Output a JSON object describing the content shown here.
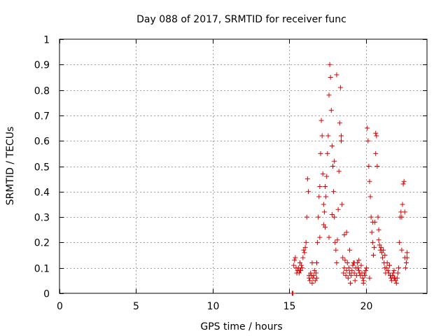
{
  "chart_data": {
    "type": "scatter",
    "title": "Day 088 of 2017, SRMTID for receiver func",
    "xlabel": "GPS time / hours",
    "ylabel": "SRMTID / TECUs",
    "xlim": [
      0,
      24
    ],
    "ylim": [
      0,
      1
    ],
    "x_ticks": [
      0,
      5,
      10,
      15,
      20
    ],
    "x_tick_labels": [
      "0",
      "5",
      "10",
      "15",
      "20"
    ],
    "y_ticks": [
      0,
      0.1,
      0.2,
      0.3,
      0.4,
      0.5,
      0.6,
      0.7,
      0.8,
      0.9,
      1
    ],
    "y_tick_labels": [
      "0",
      "0.1",
      "0.2",
      "0.3",
      "0.4",
      "0.5",
      "0.6",
      "0.7",
      "0.8",
      "0.9",
      "1"
    ],
    "grid": true,
    "marker": "plus",
    "color": "#e00000",
    "series": [
      {
        "name": "SRMTID",
        "x": [
          15.2,
          15.25,
          15.35,
          15.4,
          15.45,
          15.5,
          15.55,
          15.6,
          15.65,
          15.7,
          15.75,
          15.8,
          15.85,
          15.9,
          15.95,
          16.0,
          16.05,
          16.1,
          16.15,
          16.2,
          16.25,
          16.3,
          16.3,
          16.35,
          16.4,
          16.45,
          16.5,
          16.55,
          16.6,
          16.65,
          16.7,
          16.75,
          16.8,
          16.85,
          16.9,
          16.95,
          17.0,
          17.05,
          17.1,
          17.15,
          17.2,
          17.25,
          17.3,
          17.35,
          17.4,
          17.45,
          17.5,
          17.55,
          17.6,
          17.65,
          17.7,
          17.75,
          17.8,
          17.85,
          17.9,
          17.95,
          18.0,
          18.05,
          18.1,
          18.15,
          18.2,
          18.25,
          18.3,
          18.35,
          18.4,
          18.45,
          18.5,
          18.55,
          18.6,
          18.65,
          18.7,
          18.75,
          18.8,
          18.85,
          18.9,
          18.95,
          19.0,
          19.05,
          19.1,
          19.15,
          19.2,
          19.25,
          19.3,
          19.35,
          19.4,
          19.45,
          19.5,
          19.55,
          19.6,
          19.65,
          19.7,
          19.75,
          19.8,
          19.85,
          19.9,
          19.95,
          20.0,
          20.05,
          20.1,
          20.15,
          20.2,
          20.25,
          20.3,
          20.35,
          20.4,
          20.45,
          20.5,
          20.55,
          20.6,
          20.65,
          20.7,
          20.75,
          20.8,
          20.85,
          20.9,
          20.95,
          21.0,
          21.05,
          21.1,
          21.15,
          21.2,
          21.25,
          21.3,
          21.35,
          21.4,
          21.45,
          21.5,
          21.55,
          21.6,
          21.65,
          21.7,
          21.75,
          21.8,
          21.85,
          21.9,
          21.95,
          22.0,
          22.05,
          22.1,
          22.15,
          22.2,
          22.25,
          22.3,
          22.35,
          22.4,
          22.45,
          22.5,
          22.55,
          22.6,
          22.65,
          22.7,
          15.3,
          15.5,
          15.7,
          16.5,
          16.8,
          17.0,
          17.25,
          17.35,
          17.6,
          17.8,
          17.95,
          18.1,
          18.4,
          18.6,
          18.75,
          18.95,
          19.25,
          19.55,
          19.85,
          20.25,
          20.45,
          20.65,
          20.85,
          21.25,
          21.55,
          21.85,
          22.35,
          22.55,
          22.7
        ],
        "y": [
          0.0,
          0.0,
          0.13,
          0.14,
          0.1,
          0.08,
          0.09,
          0.1,
          0.08,
          0.12,
          0.09,
          0.11,
          0.1,
          0.14,
          0.17,
          0.16,
          0.18,
          0.2,
          0.3,
          0.45,
          0.4,
          0.07,
          0.06,
          0.05,
          0.08,
          0.07,
          0.04,
          0.06,
          0.07,
          0.09,
          0.05,
          0.08,
          0.12,
          0.2,
          0.3,
          0.38,
          0.42,
          0.55,
          0.68,
          0.62,
          0.47,
          0.35,
          0.32,
          0.26,
          0.38,
          0.46,
          0.55,
          0.62,
          0.78,
          0.9,
          0.85,
          0.72,
          0.58,
          0.5,
          0.4,
          0.3,
          0.2,
          0.17,
          0.12,
          0.21,
          0.33,
          0.48,
          0.67,
          0.81,
          0.62,
          0.35,
          0.14,
          0.08,
          0.1,
          0.13,
          0.07,
          0.09,
          0.12,
          0.06,
          0.1,
          0.08,
          0.04,
          0.07,
          0.09,
          0.11,
          0.12,
          0.08,
          0.05,
          0.1,
          0.07,
          0.12,
          0.1,
          0.09,
          0.08,
          0.07,
          0.11,
          0.08,
          0.06,
          0.04,
          0.08,
          0.07,
          0.09,
          0.1,
          0.65,
          0.6,
          0.5,
          0.44,
          0.38,
          0.3,
          0.24,
          0.2,
          0.15,
          0.18,
          0.28,
          0.55,
          0.62,
          0.5,
          0.3,
          0.21,
          0.19,
          0.17,
          0.18,
          0.16,
          0.14,
          0.17,
          0.12,
          0.1,
          0.08,
          0.1,
          0.12,
          0.09,
          0.08,
          0.11,
          0.07,
          0.06,
          0.05,
          0.07,
          0.08,
          0.09,
          0.06,
          0.05,
          0.04,
          0.06,
          0.08,
          0.1,
          0.2,
          0.3,
          0.32,
          0.3,
          0.35,
          0.43,
          0.44,
          0.14,
          0.1,
          0.12,
          0.14,
          0.11,
          0.08,
          0.09,
          0.12,
          0.06,
          0.22,
          0.27,
          0.42,
          0.22,
          0.31,
          0.52,
          0.86,
          0.6,
          0.23,
          0.24,
          0.17,
          0.12,
          0.13,
          0.05,
          0.06,
          0.28,
          0.63,
          0.25,
          0.15,
          0.11,
          0.06,
          0.17,
          0.32,
          0.16
        ]
      }
    ]
  }
}
